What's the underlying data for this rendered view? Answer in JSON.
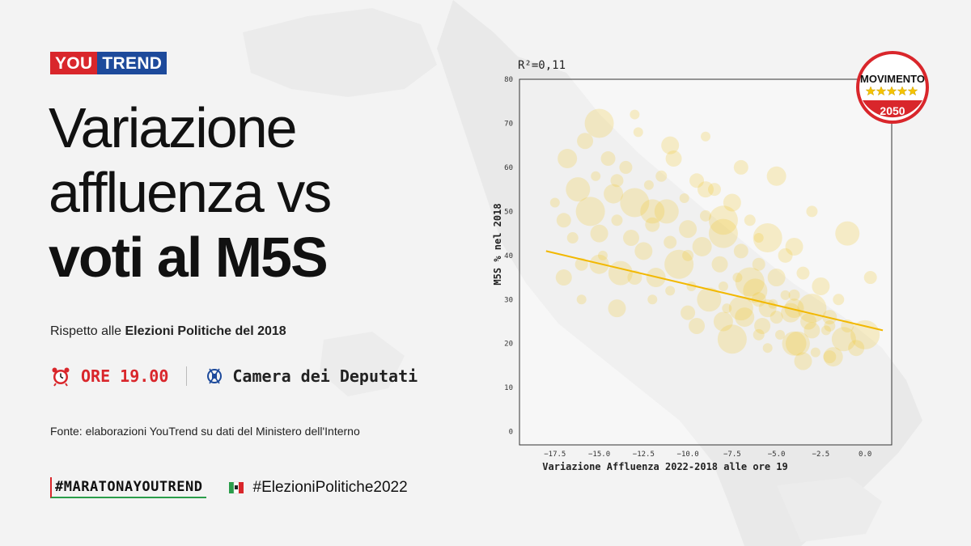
{
  "brand": {
    "you": "YOU",
    "trend": "TREND"
  },
  "title": {
    "line1": "Variazione",
    "line2": "affluenza vs",
    "line3": "voti al M5S"
  },
  "subtitle": {
    "prefix": "Rispetto alle ",
    "bold": "Elezioni Politiche del 2018"
  },
  "time_label": "ORE 19.00",
  "chamber_label": "Camera dei Deputati",
  "source": "Fonte: elaborazioni YouTrend su dati del Ministero dell'Interno",
  "hashtags": {
    "primary": "#MARATONAYOUTREND",
    "secondary": "#ElezioniPolitiche2022"
  },
  "party_logo": {
    "name_top": "MOVIMENTO",
    "year": "2050",
    "colors": {
      "red": "#d9262b",
      "yellow": "#f6c400"
    }
  },
  "icons": [
    "alarm-clock-icon",
    "camera-emblem-icon",
    "italy-flag-icon"
  ],
  "colors": {
    "accent_red": "#d9262b",
    "accent_blue": "#1d4a9b",
    "points": "#f2c21a",
    "trend": "#f2b800"
  },
  "chart_data": {
    "type": "scatter",
    "annotation": "R²=0,11",
    "xlabel": "Variazione Affluenza 2022-2018 alle ore 19",
    "ylabel": "M5S % nel 2018",
    "xlim": [
      -19.5,
      1.5
    ],
    "ylim": [
      -3,
      80
    ],
    "xticks": [
      -17.5,
      -15.0,
      -12.5,
      -10.0,
      -7.5,
      -5.0,
      -2.5,
      0.0
    ],
    "xtick_labels": [
      "−17.5",
      "−15.0",
      "−12.5",
      "−10.0",
      "−7.5",
      "−5.0",
      "−2.5",
      "0.0"
    ],
    "yticks": [
      0,
      10,
      20,
      30,
      40,
      50,
      60,
      70,
      80
    ],
    "ytick_labels": [
      "0",
      "10",
      "20",
      "30",
      "40",
      "50",
      "60",
      "70",
      "80"
    ],
    "grid": false,
    "trendline": {
      "x": [
        -18.0,
        1.0
      ],
      "y": [
        41.0,
        23.0
      ]
    },
    "points": [
      [
        -17.5,
        52
      ],
      [
        -17,
        48
      ],
      [
        -16.8,
        62
      ],
      [
        -16.5,
        44
      ],
      [
        -16.2,
        55
      ],
      [
        -16,
        38
      ],
      [
        -15.8,
        66
      ],
      [
        -15.5,
        50
      ],
      [
        -15.2,
        58
      ],
      [
        -15,
        45
      ],
      [
        -14.8,
        40
      ],
      [
        -14.5,
        62
      ],
      [
        -14.2,
        54
      ],
      [
        -14,
        48
      ],
      [
        -13.8,
        36
      ],
      [
        -13.5,
        60
      ],
      [
        -13.2,
        44
      ],
      [
        -13,
        52
      ],
      [
        -12.8,
        68
      ],
      [
        -12.5,
        41
      ],
      [
        -12.2,
        56
      ],
      [
        -12,
        47
      ],
      [
        -11.8,
        35
      ],
      [
        -11.5,
        58
      ],
      [
        -11.2,
        50
      ],
      [
        -11,
        43
      ],
      [
        -10.8,
        62
      ],
      [
        -10.5,
        38
      ],
      [
        -10.2,
        53
      ],
      [
        -10,
        46
      ],
      [
        -9.8,
        33
      ],
      [
        -9.5,
        57
      ],
      [
        -9.2,
        42
      ],
      [
        -9,
        49
      ],
      [
        -8.8,
        30
      ],
      [
        -8.5,
        55
      ],
      [
        -8.2,
        38
      ],
      [
        -8,
        45
      ],
      [
        -7.8,
        28
      ],
      [
        -7.5,
        52
      ],
      [
        -7.2,
        35
      ],
      [
        -7,
        41
      ],
      [
        -6.8,
        26
      ],
      [
        -6.5,
        48
      ],
      [
        -6.2,
        32
      ],
      [
        -6,
        38
      ],
      [
        -5.8,
        24
      ],
      [
        -5.5,
        44
      ],
      [
        -5.2,
        29
      ],
      [
        -5,
        35
      ],
      [
        -4.8,
        22
      ],
      [
        -4.5,
        40
      ],
      [
        -4.2,
        27
      ],
      [
        -4,
        31
      ],
      [
        -3.8,
        20
      ],
      [
        -3.5,
        36
      ],
      [
        -3.2,
        25
      ],
      [
        -3,
        28
      ],
      [
        -2.8,
        18
      ],
      [
        -2.5,
        33
      ],
      [
        -2.2,
        23
      ],
      [
        -2,
        26
      ],
      [
        -1.8,
        17
      ],
      [
        -1.5,
        30
      ],
      [
        -1.2,
        21
      ],
      [
        -1,
        24
      ],
      [
        -0.5,
        19
      ],
      [
        0,
        22
      ],
      [
        -16,
        30
      ],
      [
        -14,
        28
      ],
      [
        -12,
        30
      ],
      [
        -10,
        27
      ],
      [
        -8,
        25
      ],
      [
        -6,
        22
      ],
      [
        -4,
        20
      ],
      [
        -2,
        17
      ],
      [
        -17,
        35
      ],
      [
        -15,
        70
      ],
      [
        -13,
        72
      ],
      [
        -11,
        65
      ],
      [
        -9,
        67
      ],
      [
        -7,
        60
      ],
      [
        -5,
        58
      ],
      [
        -3,
        50
      ],
      [
        -1,
        45
      ],
      [
        0.3,
        35
      ],
      [
        -9.5,
        24
      ],
      [
        -7.5,
        21
      ],
      [
        -5.5,
        19
      ],
      [
        -3.5,
        16
      ],
      [
        -8,
        33
      ],
      [
        -6,
        30
      ],
      [
        -4,
        28
      ],
      [
        -2,
        24
      ],
      [
        -7,
        28
      ],
      [
        -5,
        26
      ],
      [
        -3,
        23
      ],
      [
        -6.5,
        34
      ],
      [
        -4.5,
        31
      ],
      [
        -5.5,
        28
      ],
      [
        -11,
        32
      ],
      [
        -13,
        35
      ],
      [
        -15,
        38
      ],
      [
        -10,
        40
      ],
      [
        -12,
        50
      ],
      [
        -14,
        57
      ],
      [
        -9,
        55
      ],
      [
        -8,
        48
      ],
      [
        -6,
        44
      ],
      [
        -4,
        42
      ]
    ]
  }
}
